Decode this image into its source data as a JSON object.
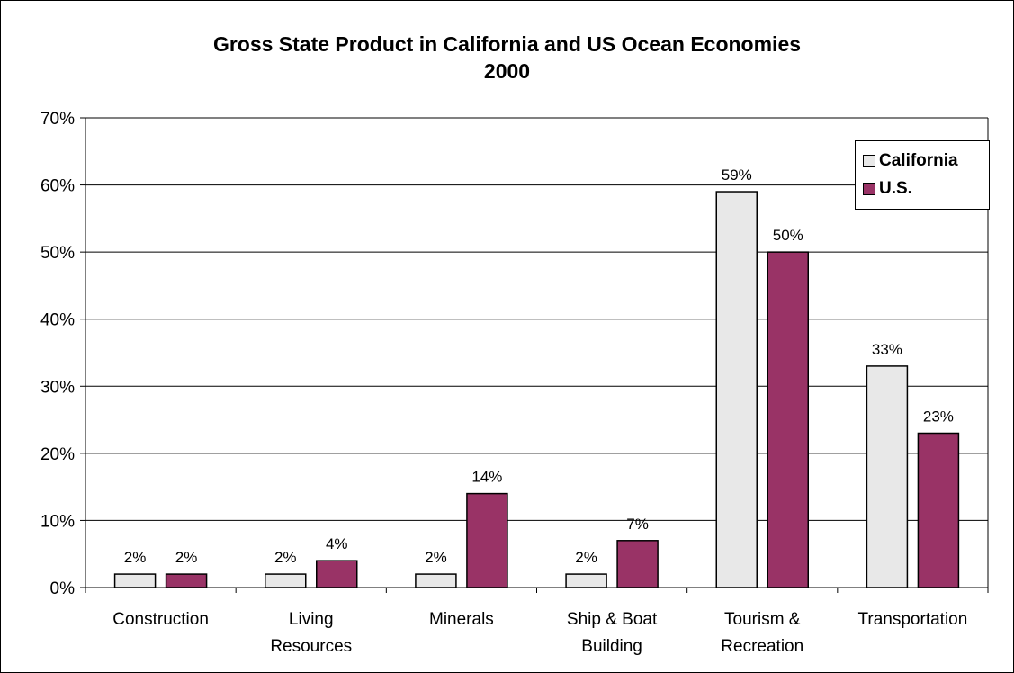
{
  "chart_data": {
    "type": "bar",
    "title": [
      "Gross State Product in California and US Ocean Economies",
      "2000"
    ],
    "xlabel": "",
    "ylabel": "",
    "ylim": [
      0,
      70
    ],
    "yticks": [
      "0%",
      "10%",
      "20%",
      "30%",
      "40%",
      "50%",
      "60%",
      "70%"
    ],
    "categories": [
      [
        "Construction"
      ],
      [
        "Living",
        "Resources"
      ],
      [
        "Minerals"
      ],
      [
        "Ship & Boat",
        "Building"
      ],
      [
        "Tourism &",
        "Recreation"
      ],
      [
        "Transportation"
      ]
    ],
    "series": [
      {
        "name": "California",
        "values": [
          2,
          2,
          2,
          2,
          59,
          33
        ],
        "labels": [
          "2%",
          "2%",
          "2%",
          "2%",
          "59%",
          "33%"
        ],
        "color": "#e8e8e8"
      },
      {
        "name": "U.S.",
        "values": [
          2,
          4,
          14,
          7,
          50,
          23
        ],
        "labels": [
          "2%",
          "4%",
          "14%",
          "7%",
          "50%",
          "23%"
        ],
        "color": "#993366"
      }
    ],
    "grid": true,
    "legend_position": "top-right"
  }
}
